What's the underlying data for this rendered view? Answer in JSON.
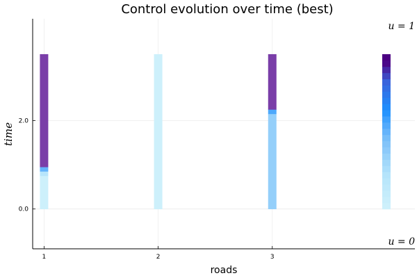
{
  "chart_data": {
    "type": "heatmap",
    "title": "Control evolution over time (best)",
    "xlabel": "roads",
    "ylabel": "time",
    "xticks": [
      "1",
      "2",
      "3"
    ],
    "yticks": [
      "0.0",
      "2.0"
    ],
    "xlim": [
      0.9,
      4.25
    ],
    "ylim": [
      -0.9,
      4.3
    ],
    "grid": true,
    "annotations": [
      {
        "text": "u = 1",
        "at": "top-right"
      },
      {
        "text": "u = 0",
        "at": "bottom-right"
      }
    ],
    "colors": {
      "u0": "#cdf0fb",
      "u_low": "#b7e5fb",
      "u_mid": "#7cc0f9",
      "u_bright": "#1e90ff",
      "u_mid_high": "#3c5fd8",
      "u1": "#7a3ea8",
      "u1_dark": "#4b0082"
    },
    "columns": [
      {
        "road": 1,
        "segments": [
          {
            "t0": 0.0,
            "t1": 0.75,
            "u": 0.0
          },
          {
            "t0": 0.75,
            "t1": 0.85,
            "u": 0.2
          },
          {
            "t0": 0.85,
            "t1": 0.95,
            "u": 0.5
          },
          {
            "t0": 0.95,
            "t1": 3.5,
            "u": 1.0
          }
        ]
      },
      {
        "road": 2,
        "segments": [
          {
            "t0": 0.0,
            "t1": 3.5,
            "u": 0.0
          }
        ]
      },
      {
        "road": 3,
        "segments": [
          {
            "t0": 0.0,
            "t1": 2.15,
            "u": 0.35
          },
          {
            "t0": 2.15,
            "t1": 2.25,
            "u": 0.55
          },
          {
            "t0": 2.25,
            "t1": 3.5,
            "u": 1.0
          }
        ]
      },
      {
        "road": 4,
        "gradient": true,
        "u_levels": [
          0.0,
          0.04,
          0.08,
          0.13,
          0.17,
          0.21,
          0.25,
          0.29,
          0.33,
          0.38,
          0.42,
          0.46,
          0.5,
          0.54,
          0.58,
          0.63,
          0.67,
          0.71,
          0.75,
          0.79,
          0.83,
          0.88,
          0.92,
          0.96,
          1.0
        ],
        "t0": 0.0,
        "t1": 3.5
      }
    ]
  }
}
